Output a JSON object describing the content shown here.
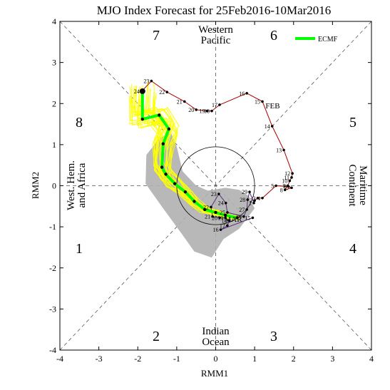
{
  "chart_data": {
    "type": "line",
    "title": "MJO Index Forecast for 25Feb2016-10Mar2016",
    "xlabel": "RMM1",
    "ylabel": "RMM2",
    "xlim": [
      -4,
      4
    ],
    "ylim": [
      -4,
      4
    ],
    "xticks": [
      "-4",
      "-3",
      "-2",
      "-1",
      "0",
      "1",
      "2",
      "3",
      "4"
    ],
    "yticks": [
      "-4",
      "-3",
      "-2",
      "-1",
      "0",
      "1",
      "2",
      "3",
      "4"
    ],
    "phase_labels": [
      "1",
      "2",
      "3",
      "4",
      "5",
      "6",
      "7",
      "8"
    ],
    "region_labels": {
      "western_pacific": [
        "Western",
        "Pacific"
      ],
      "maritime_continent": [
        "Maritime",
        "Continent"
      ],
      "indian_ocean": [
        "Indian",
        "Ocean"
      ],
      "west_hem_africa": [
        "West. Hem.",
        "and Africa"
      ]
    },
    "legend": {
      "label": "ECMF",
      "color": "#00ff00",
      "position": "top-right"
    },
    "colors": {
      "observed": "#aa0000",
      "ensemble": "#ffff00",
      "ensemble_mean": "#00ff00",
      "spread": "#b0b0b0",
      "month_label": "#aa0000"
    },
    "observed": {
      "month_labels": [
        {
          "text": "FEB",
          "x": 1.28,
          "y": 1.88
        },
        {
          "text": "MAR",
          "x": 0.22,
          "y": -0.88
        }
      ],
      "points": [
        {
          "day": "14",
          "x": 1.45,
          "y": 1.45
        },
        {
          "day": "13",
          "x": 1.75,
          "y": 0.87
        },
        {
          "day": "12",
          "x": 1.97,
          "y": 0.3
        },
        {
          "day": "11",
          "x": 1.95,
          "y": 0.2
        },
        {
          "day": "10",
          "x": 1.9,
          "y": 0.12
        },
        {
          "day": "9",
          "x": 1.85,
          "y": 0.0
        },
        {
          "day": "8",
          "x": 1.78,
          "y": -0.1
        },
        {
          "day": "7",
          "x": 1.95,
          "y": -0.05
        },
        {
          "day": "6",
          "x": 1.87,
          "y": -0.02
        },
        {
          "day": "5",
          "x": 1.55,
          "y": 0.0
        },
        {
          "day": "4",
          "x": 1.2,
          "y": -0.3
        },
        {
          "day": "3",
          "x": 1.08,
          "y": -0.3
        },
        {
          "day": "2",
          "x": 1.0,
          "y": -0.36
        },
        {
          "day": "1",
          "x": 0.98,
          "y": -0.42
        },
        {
          "day": "29",
          "x": 0.87,
          "y": -0.15
        },
        {
          "day": "28",
          "x": 0.82,
          "y": -0.34
        },
        {
          "day": "27",
          "x": 0.8,
          "y": -0.58
        },
        {
          "day": "26",
          "x": 0.72,
          "y": -0.75
        },
        {
          "day": "25",
          "x": 0.3,
          "y": -0.65
        },
        {
          "day": "24",
          "x": 0.26,
          "y": -0.42
        },
        {
          "day": "23",
          "x": 0.08,
          "y": -0.2
        },
        {
          "day": "22",
          "x": -0.12,
          "y": -0.52
        },
        {
          "day": "21",
          "x": -0.08,
          "y": -0.75
        },
        {
          "day": "20",
          "x": 0.1,
          "y": -0.78
        },
        {
          "day": "19",
          "x": 0.25,
          "y": -0.78
        },
        {
          "day": "18",
          "x": 0.35,
          "y": -0.85
        },
        {
          "day": "17",
          "x": 0.3,
          "y": -0.97
        },
        {
          "day": "16",
          "x": 0.13,
          "y": -1.07
        },
        {
          "day": "15",
          "x": 0.95,
          "y": -0.78
        }
      ],
      "forecast_track": [
        {
          "day": "25",
          "x": 0.95,
          "y": -0.78
        },
        {
          "day": "26",
          "x": 0.35,
          "y": -0.85
        },
        {
          "day": "27",
          "x": 0.08,
          "y": -0.78
        },
        {
          "day": "28",
          "x": -0.12,
          "y": -0.75
        },
        {
          "day": "29",
          "x": -0.3,
          "y": -0.68
        },
        {
          "day": "1",
          "x": -0.48,
          "y": -0.5
        },
        {
          "day": "2",
          "x": -0.65,
          "y": -0.3
        },
        {
          "day": "3",
          "x": -0.85,
          "y": -0.1
        },
        {
          "day": "4",
          "x": -1.05,
          "y": 0.1
        },
        {
          "day": "5",
          "x": -1.25,
          "y": 0.3
        },
        {
          "day": "6",
          "x": -1.4,
          "y": 0.55
        },
        {
          "day": "7",
          "x": -1.55,
          "y": 0.8
        },
        {
          "day": "8",
          "x": -1.65,
          "y": 1.1
        },
        {
          "day": "9",
          "x": -1.75,
          "y": 1.45
        },
        {
          "day": "10",
          "x": -1.95,
          "y": 1.6
        }
      ],
      "path_top": [
        {
          "day": "24",
          "x": -1.9,
          "y": 2.3
        },
        {
          "day": "23",
          "x": -1.65,
          "y": 2.55
        },
        {
          "day": "22",
          "x": -1.25,
          "y": 2.28
        },
        {
          "day": "21",
          "x": -0.8,
          "y": 2.05
        },
        {
          "day": "20",
          "x": -0.5,
          "y": 1.85
        },
        {
          "day": "19",
          "x": -0.22,
          "y": 1.82
        },
        {
          "day": "18",
          "x": -0.1,
          "y": 1.82
        },
        {
          "day": "17",
          "x": 0.1,
          "y": 1.97
        },
        {
          "day": "16",
          "x": 0.8,
          "y": 2.25
        },
        {
          "day": "15",
          "x": 1.2,
          "y": 2.05
        }
      ]
    },
    "ensemble_mean": [
      {
        "x": 0.55,
        "y": -0.78
      },
      {
        "x": 0.25,
        "y": -0.72
      },
      {
        "x": 0.0,
        "y": -0.65
      },
      {
        "x": -0.28,
        "y": -0.58
      },
      {
        "x": -0.55,
        "y": -0.38
      },
      {
        "x": -0.78,
        "y": -0.15
      },
      {
        "x": -1.05,
        "y": 0.05
      },
      {
        "x": -1.28,
        "y": 0.28
      },
      {
        "x": -1.38,
        "y": 0.45
      },
      {
        "x": -1.35,
        "y": 1.02
      },
      {
        "x": -1.2,
        "y": 1.38
      },
      {
        "x": -1.45,
        "y": 1.72
      },
      {
        "x": -1.88,
        "y": 1.62
      },
      {
        "x": -1.88,
        "y": 2.3
      }
    ],
    "spread_polygon": [
      {
        "x": 0.85,
        "y": -0.25
      },
      {
        "x": 1.0,
        "y": -0.55
      },
      {
        "x": 0.6,
        "y": -1.05
      },
      {
        "x": 0.2,
        "y": -1.3
      },
      {
        "x": -0.1,
        "y": -1.75
      },
      {
        "x": -0.55,
        "y": -1.6
      },
      {
        "x": -0.85,
        "y": -1.2
      },
      {
        "x": -1.35,
        "y": -0.55
      },
      {
        "x": -1.8,
        "y": 0.05
      },
      {
        "x": -1.78,
        "y": 0.75
      },
      {
        "x": -1.45,
        "y": 1.15
      },
      {
        "x": -1.15,
        "y": 1.3
      },
      {
        "x": -1.0,
        "y": 0.95
      },
      {
        "x": -0.85,
        "y": 0.35
      },
      {
        "x": -0.5,
        "y": 0.0
      },
      {
        "x": -0.2,
        "y": -0.12
      },
      {
        "x": 0.25,
        "y": -0.05
      },
      {
        "x": 0.6,
        "y": -0.1
      }
    ]
  }
}
